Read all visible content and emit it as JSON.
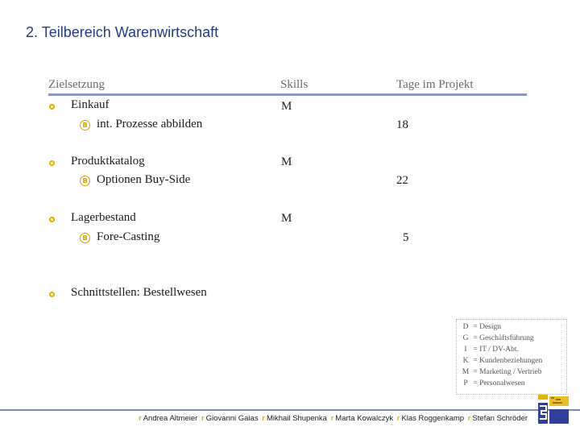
{
  "title": "2. Teilbereich Warenwirtschaft",
  "headers": {
    "goal": "Zielsetzung",
    "skills": "Skills",
    "days": "Tage im Projekt"
  },
  "items": [
    {
      "label": "Einkauf",
      "skill": "M",
      "sub": "int. Prozesse abbilden",
      "days": "18"
    },
    {
      "label": "Produktkatalog",
      "skill": "M",
      "sub": "Optionen Buy-Side",
      "days": "22"
    },
    {
      "label": "Lagerbestand",
      "skill": "M",
      "sub": "Fore-Casting",
      "days": "5"
    },
    {
      "label": "Schnittstellen: Bestellwesen"
    }
  ],
  "legend": [
    {
      "key": "D",
      "value": "= Design"
    },
    {
      "key": "G",
      "value": "= Geschäftsführung"
    },
    {
      "key": "I",
      "value": "= IT / DV-Abt."
    },
    {
      "key": "K",
      "value": "= Kundenbeziehungen"
    },
    {
      "key": "M",
      "value": "= Marketing / Vertrieb"
    },
    {
      "key": "P",
      "value": "= Personalwesen"
    }
  ],
  "footer_names": [
    "Andrea Altmeier",
    "Giovanni Gaias",
    "Mikhail Shupenka",
    "Marta Kowalczyk",
    "Klas Roggenkamp",
    "Stefan Schröder"
  ],
  "colors": {
    "title": "#233a86",
    "accent_line": "#8e96c8",
    "bullet": "#e3b400"
  },
  "icons": {
    "bullet": "yellow-ring-bullet-icon",
    "sub_bullet": "circled-b-icon",
    "logo": "team-logo-icon"
  }
}
